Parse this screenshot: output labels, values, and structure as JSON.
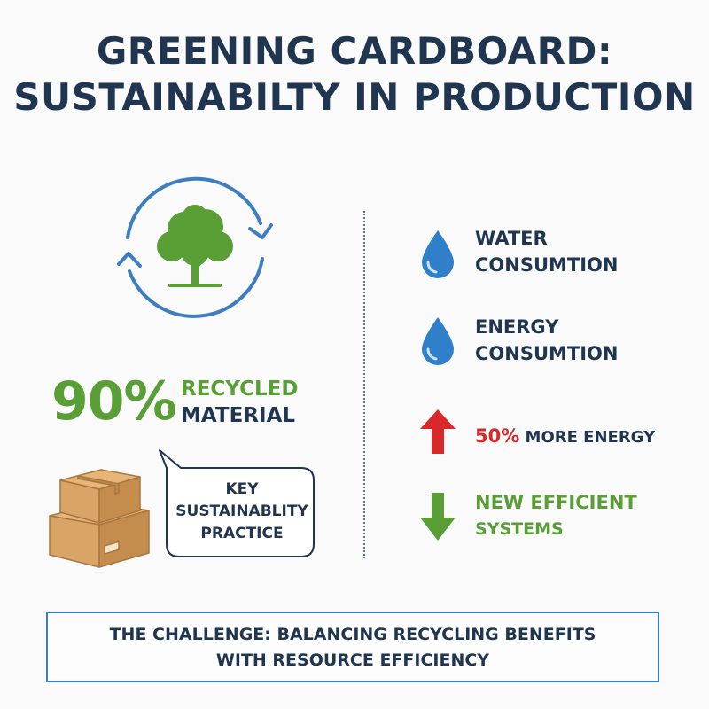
{
  "title": {
    "line1": "GREENING CARDBOARD:",
    "line2": "SUSTAINABILTY IN PRODUCTION"
  },
  "recycled": {
    "percent": "90%",
    "label_line1": "RECYCLED",
    "label_line2": "MATERIAL"
  },
  "bubble": {
    "line1": "KEY",
    "line2": "SUSTAINABLITY",
    "line3": "PRACTICE"
  },
  "items": {
    "water": {
      "line1": "WATER",
      "line2": "CONSUMTION",
      "icon": "water-drop-icon"
    },
    "energy": {
      "line1": "ENERGY",
      "line2": "CONSUMTION",
      "icon": "water-drop-icon"
    },
    "more_energy": {
      "percent": "50%",
      "rest": " MORE ENERGY",
      "icon": "red-up-arrow-icon"
    },
    "efficient": {
      "line1": "NEW EFFICIENT",
      "line2": "SYSTEMS",
      "icon": "green-down-arrow-icon"
    }
  },
  "challenge": {
    "line1": "THE CHALLENGE: BALANCING RECYCLING BENEFITS",
    "line2": "WITH RESOURCE EFFICIENCY"
  },
  "colors": {
    "navy": "#1f3550",
    "green": "#5a9e36",
    "blue": "#3d7dc2",
    "red": "#d8282a",
    "cardboard": "#d9a566"
  }
}
